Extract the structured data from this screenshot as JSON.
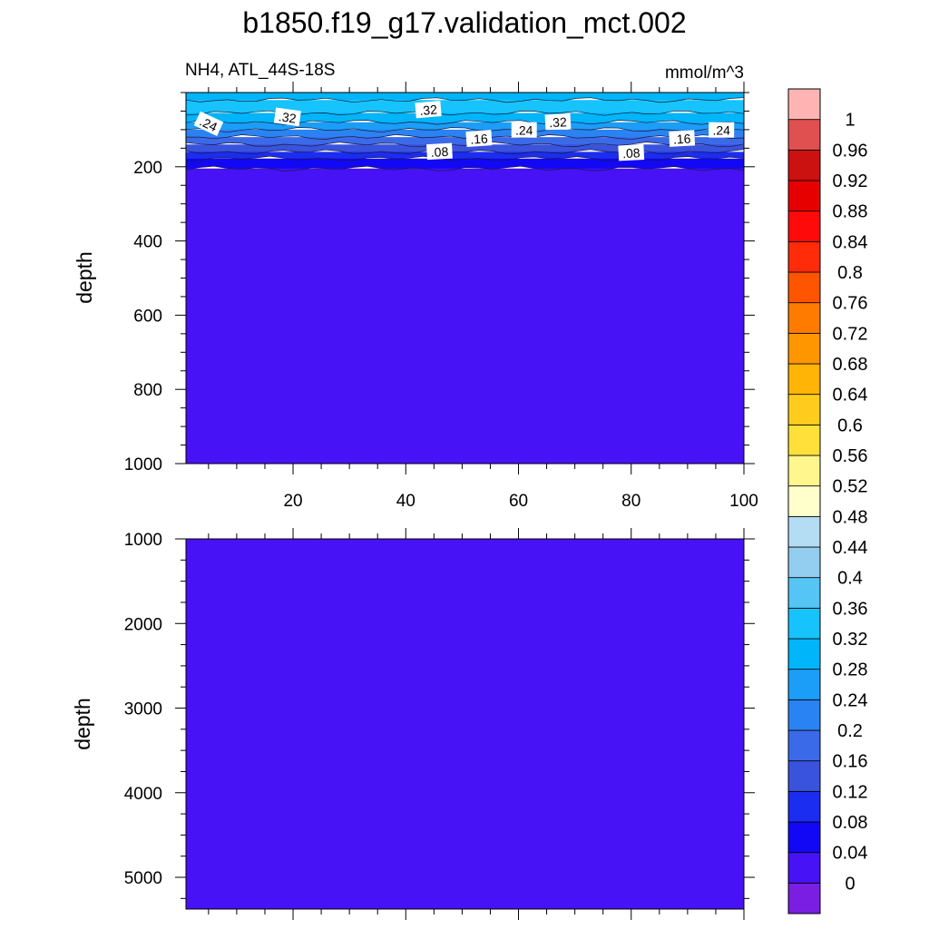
{
  "chart_data": {
    "title": "b1850.f19_g17.validation_mct.002",
    "left_subtitle": "NH4, ATL_44S-18S",
    "right_subtitle": "mmol/m^3",
    "type": "heatmap",
    "panels": [
      {
        "name": "upper",
        "ylabel": "depth",
        "ylim": [
          0,
          1000
        ],
        "y_reversed": true,
        "yticks": [
          200,
          400,
          600,
          800,
          1000
        ],
        "ytick_labels": [
          "200",
          "400",
          "600",
          "800",
          "1000"
        ],
        "xlim": [
          1,
          100
        ],
        "xticks": [
          20,
          40,
          60,
          80,
          100
        ],
        "xtick_labels": [
          "20",
          "40",
          "60",
          "80",
          "100"
        ],
        "layers": [
          {
            "to_depth": 20,
            "color": "#00b5f9"
          },
          {
            "to_depth": 55,
            "color": "#17c3fc"
          },
          {
            "to_depth": 80,
            "color": "#00b5f9"
          },
          {
            "to_depth": 100,
            "color": "#1a9ef8"
          },
          {
            "to_depth": 120,
            "color": "#2a83f2"
          },
          {
            "to_depth": 140,
            "color": "#3a6ae8"
          },
          {
            "to_depth": 160,
            "color": "#3a53dd"
          },
          {
            "to_depth": 178,
            "color": "#1b2df0"
          },
          {
            "to_depth": 205,
            "color": "#1208f5"
          },
          {
            "to_depth": 1000,
            "color": "#4712f5"
          }
        ],
        "contour_labels": [
          {
            "x": 5,
            "depth": 85,
            "text": ".24",
            "angle": 25
          },
          {
            "x": 19,
            "depth": 67,
            "text": ".32",
            "angle": 8
          },
          {
            "x": 44,
            "depth": 47,
            "text": ".32",
            "angle": -5
          },
          {
            "x": 67,
            "depth": 80,
            "text": ".32",
            "angle": -3
          },
          {
            "x": 61,
            "depth": 102,
            "text": ".24",
            "angle": 0
          },
          {
            "x": 53,
            "depth": 125,
            "text": ".16",
            "angle": -4
          },
          {
            "x": 46,
            "depth": 160,
            "text": ".08",
            "angle": -3
          },
          {
            "x": 80,
            "depth": 163,
            "text": ".08",
            "angle": -3
          },
          {
            "x": 89,
            "depth": 125,
            "text": ".16",
            "angle": -3
          },
          {
            "x": 96,
            "depth": 102,
            "text": ".24",
            "angle": 0
          }
        ]
      },
      {
        "name": "lower",
        "ylabel": "depth",
        "ylim": [
          1000,
          5375
        ],
        "y_reversed": true,
        "yticks": [
          1000,
          2000,
          3000,
          4000,
          5000
        ],
        "ytick_labels": [
          "1000",
          "2000",
          "3000",
          "4000",
          "5000"
        ],
        "xlim": [
          1,
          100
        ],
        "xticks": [
          20,
          40,
          60,
          80,
          100
        ],
        "layers": [
          {
            "to_depth": 5375,
            "color": "#4712f5"
          }
        ]
      }
    ],
    "colorbar": {
      "levels": [
        "0",
        "0.04",
        "0.08",
        "0.12",
        "0.16",
        "0.2",
        "0.24",
        "0.28",
        "0.32",
        "0.36",
        "0.4",
        "0.44",
        "0.48",
        "0.52",
        "0.56",
        "0.6",
        "0.64",
        "0.68",
        "0.72",
        "0.76",
        "0.8",
        "0.84",
        "0.88",
        "0.92",
        "0.96",
        "1"
      ],
      "colors": [
        "#7a1fe2",
        "#4712f5",
        "#1208f5",
        "#1b2df0",
        "#3a53dd",
        "#3a6ae8",
        "#2a83f2",
        "#1a9ef8",
        "#00b5f9",
        "#17c3fc",
        "#54c5f5",
        "#93cdef",
        "#b4ddf4",
        "#ffffcc",
        "#fff68e",
        "#ffe03a",
        "#ffcc1e",
        "#ffb406",
        "#ff9600",
        "#ff7b00",
        "#ff5500",
        "#ff2b09",
        "#ff0a0a",
        "#e60000",
        "#cc1111",
        "#e05050",
        "#ffb4b4"
      ]
    }
  }
}
